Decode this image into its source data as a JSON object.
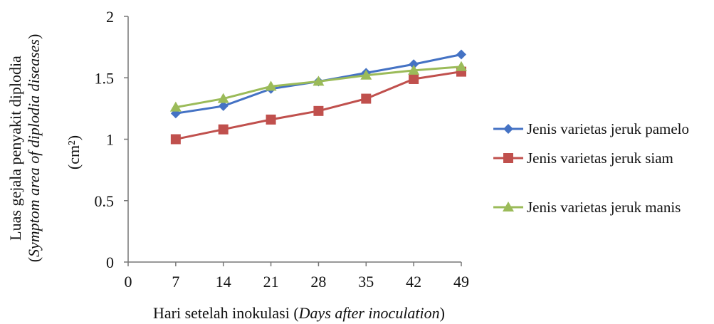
{
  "chart_data": {
    "type": "line",
    "x": [
      7,
      14,
      21,
      28,
      35,
      42,
      49
    ],
    "xticks": [
      0,
      7,
      14,
      21,
      28,
      35,
      42,
      49
    ],
    "yticks": [
      0,
      0.5,
      1,
      1.5,
      2
    ],
    "ytick_labels": [
      "0",
      "0.5",
      "1",
      "1.5",
      "2"
    ],
    "xlim": [
      0,
      49
    ],
    "ylim": [
      0,
      2
    ],
    "grid": false,
    "legend_position": "right",
    "xlabel": {
      "main": "Hari setelah inokulasi (",
      "italic": "Days after inoculation",
      "close": ")"
    },
    "ylabel": {
      "line1": "Luas gejala penyakit diplodia",
      "line2_open": "(",
      "line2_italic_a": "Symptom area of ",
      "line2_italic_b": "diplodia diseases",
      "line2_close": ")",
      "unit": "(cm²)"
    },
    "series": [
      {
        "name": "Jenis varietas jeruk pamelo",
        "color": "#4472C4",
        "marker": "diamond",
        "values": [
          1.21,
          1.27,
          1.41,
          1.47,
          1.54,
          1.61,
          1.69
        ]
      },
      {
        "name": "Jenis varietas jeruk siam",
        "color": "#C0504D",
        "marker": "square",
        "values": [
          1.0,
          1.08,
          1.16,
          1.23,
          1.33,
          1.49,
          1.55
        ]
      },
      {
        "name": "Jenis varietas jeruk manis",
        "color": "#9BBB59",
        "marker": "triangle",
        "values": [
          1.26,
          1.33,
          1.43,
          1.47,
          1.52,
          1.56,
          1.59
        ]
      }
    ]
  }
}
